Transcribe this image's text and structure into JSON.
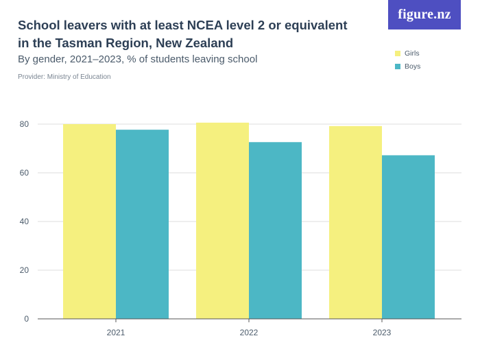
{
  "header": {
    "title": "School leavers with at least NCEA level 2 or equivalent in the Tasman Region, New Zealand",
    "subtitle": "By gender, 2021–2023, % of students leaving school",
    "provider": "Provider: Ministry of Education",
    "logo": "figure.nz"
  },
  "legend": {
    "items": [
      {
        "label": "Girls",
        "color": "#f5f07f"
      },
      {
        "label": "Boys",
        "color": "#4cb7c5"
      }
    ]
  },
  "chart_data": {
    "type": "bar",
    "title": "School leavers with at least NCEA level 2 or equivalent in the Tasman Region, New Zealand",
    "subtitle": "By gender, 2021–2023, % of students leaving school",
    "categories": [
      "2021",
      "2022",
      "2023"
    ],
    "series": [
      {
        "name": "Girls",
        "color": "#f5f07f",
        "values": [
          80.0,
          80.6,
          79.2
        ]
      },
      {
        "name": "Boys",
        "color": "#4cb7c5",
        "values": [
          77.7,
          72.6,
          67.2
        ]
      }
    ],
    "ylim": [
      0,
      80
    ],
    "yticks": [
      "0",
      "20",
      "40",
      "60",
      "80"
    ],
    "xlabel": "",
    "ylabel": "",
    "grid": true,
    "legend_position": "top-right"
  }
}
